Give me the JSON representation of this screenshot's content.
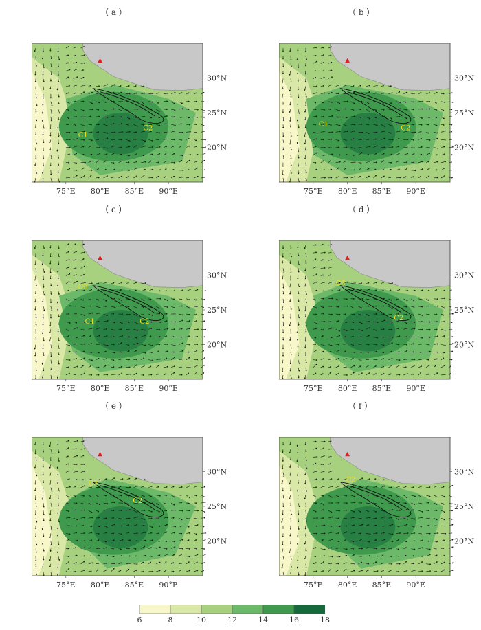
{
  "panels": [
    {
      "label": "（ a ）",
      "centers": [
        {
          "name": "C1",
          "lon": 77.5,
          "lat": 21.5
        },
        {
          "name": "C2",
          "lon": 87.0,
          "lat": 22.5
        }
      ],
      "style": "a"
    },
    {
      "label": "（ b ）",
      "centers": [
        {
          "name": "C1",
          "lon": 76.5,
          "lat": 23.0
        },
        {
          "name": "C2",
          "lon": 88.5,
          "lat": 22.5
        }
      ],
      "style": "b"
    },
    {
      "label": "（ c ）",
      "centers": [
        {
          "name": "C3",
          "lon": 77.5,
          "lat": 28.0
        },
        {
          "name": "C1",
          "lon": 78.5,
          "lat": 23.0
        },
        {
          "name": "C2",
          "lon": 86.5,
          "lat": 23.0
        }
      ],
      "style": "c"
    },
    {
      "label": "（ d ）",
      "centers": [
        {
          "name": "C3",
          "lon": 79.0,
          "lat": 28.5
        },
        {
          "name": "C2",
          "lon": 87.5,
          "lat": 23.5
        }
      ],
      "style": "d"
    },
    {
      "label": "（ e ）",
      "centers": [
        {
          "name": "C3",
          "lon": 79.0,
          "lat": 28.0
        },
        {
          "name": "C2",
          "lon": 85.5,
          "lat": 25.5
        }
      ],
      "style": "e"
    },
    {
      "label": "（ f ）",
      "centers": [
        {
          "name": "C3",
          "lon": 80.5,
          "lat": 28.5
        }
      ],
      "style": "f"
    }
  ],
  "axes": {
    "lon_ticks": [
      "75°E",
      "80°E",
      "85°E",
      "90°E"
    ],
    "lat_ticks": [
      "20°N",
      "25°N",
      "30°N"
    ]
  },
  "marker": {
    "name": "red-triangle",
    "lon": 80.0,
    "lat": 32.5,
    "color": "#e02020"
  },
  "colorbar": {
    "ticks": [
      "6",
      "8",
      "10",
      "12",
      "14",
      "16",
      "18"
    ],
    "colors": [
      "#f7f7c9",
      "#d9e8a6",
      "#a7d07f",
      "#6db96a",
      "#3f9a4e",
      "#16693a"
    ]
  }
}
